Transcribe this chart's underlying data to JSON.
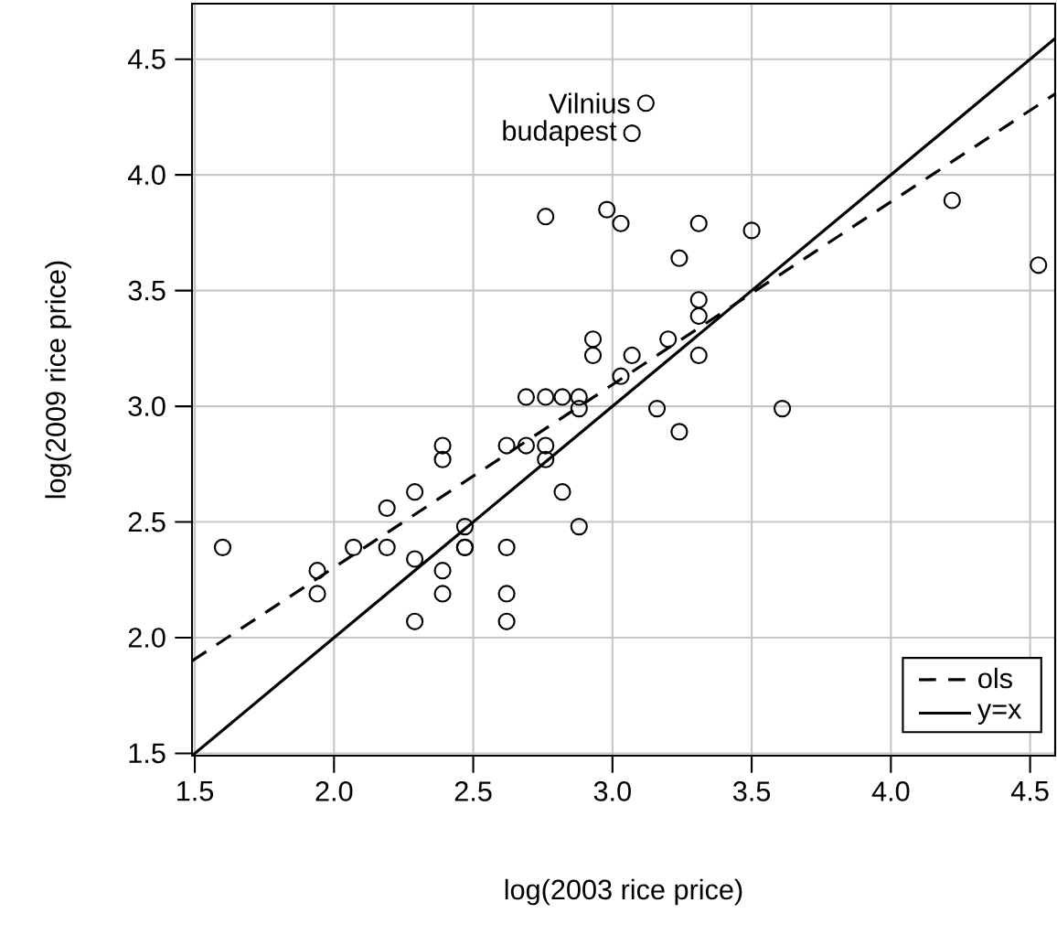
{
  "chart_data": {
    "type": "scatter",
    "xlabel": "log(2003 rice price)",
    "ylabel": "log(2009 rice price)",
    "xlim": [
      1.49,
      4.59
    ],
    "ylim": [
      1.49,
      4.74
    ],
    "xticks": [
      {
        "value": 1.5,
        "label": "1.5"
      },
      {
        "value": 2,
        "label": "2.0"
      },
      {
        "value": 2.5,
        "label": "2.5"
      },
      {
        "value": 3,
        "label": "3.0"
      },
      {
        "value": 3.5,
        "label": "3.5"
      },
      {
        "value": 4,
        "label": "4.0"
      },
      {
        "value": 4.5,
        "label": "4.5"
      }
    ],
    "yticks": [
      {
        "value": 1.5,
        "label": "1.5"
      },
      {
        "value": 2,
        "label": "2.0"
      },
      {
        "value": 2.5,
        "label": "2.5"
      },
      {
        "value": 3,
        "label": "3.0"
      },
      {
        "value": 3.5,
        "label": "3.5"
      },
      {
        "value": 4,
        "label": "4.0"
      },
      {
        "value": 4.5,
        "label": "4.5"
      }
    ],
    "grid": true,
    "legend": "bottom right",
    "series": [
      {
        "color": "#000000",
        "marker": "circle",
        "x": [
          1.6,
          1.94,
          1.94,
          2.07,
          2.19,
          2.19,
          2.29,
          2.29,
          2.29,
          2.39,
          2.39,
          2.39,
          2.39,
          2.47,
          2.47,
          2.47,
          2.62,
          2.62,
          2.62,
          2.62,
          2.69,
          2.76,
          2.82,
          2.88,
          2.88,
          2.69,
          2.76,
          2.76,
          2.82,
          2.88,
          2.93,
          2.93,
          3.03,
          3.07,
          3.2,
          3.31,
          3.31,
          3.31,
          3.16,
          3.24,
          3.61,
          3.12,
          3.07,
          2.76,
          2.98,
          3.03,
          3.31,
          3.24,
          3.5,
          4.22,
          4.53
        ],
        "values": [
          2.39,
          2.29,
          2.19,
          2.39,
          2.39,
          2.56,
          2.63,
          2.34,
          2.07,
          2.83,
          2.77,
          2.29,
          2.19,
          2.48,
          2.39,
          2.39,
          2.83,
          2.39,
          2.19,
          2.07,
          3.04,
          3.04,
          3.04,
          3.04,
          2.99,
          2.83,
          2.83,
          2.77,
          2.63,
          2.48,
          3.29,
          3.22,
          3.13,
          3.22,
          3.29,
          3.46,
          3.39,
          3.22,
          2.99,
          2.89,
          2.99,
          4.31,
          4.18,
          3.82,
          3.85,
          3.79,
          3.79,
          3.64,
          3.76,
          3.89,
          3.61
        ]
      },
      {
        "type": "line",
        "name": "ols",
        "color": "#000000",
        "marker": "none",
        "line_style": "dashed",
        "x": [
          1.49,
          4.59
        ],
        "values": [
          1.9,
          4.35
        ]
      },
      {
        "type": "line",
        "name": "y=x",
        "color": "#000000",
        "marker": "none",
        "line_style": "solid",
        "x": [
          1.49,
          4.59
        ],
        "values": [
          1.49,
          4.59
        ]
      }
    ],
    "annotations": [
      {
        "text": "Vilnius",
        "x": 3.12,
        "y": 4.31
      },
      {
        "text": "budapest",
        "x": 3.07,
        "y": 4.18
      }
    ]
  }
}
